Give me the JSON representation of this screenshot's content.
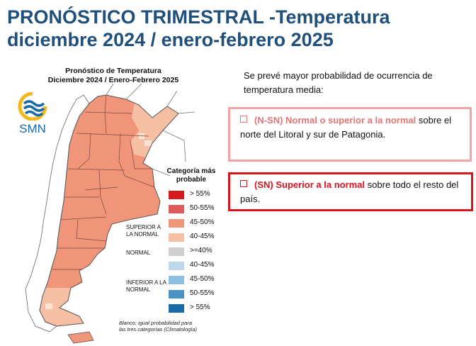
{
  "slide": {
    "title_line1": "PRONÓSTICO TRIMESTRAL -Temperatura",
    "title_line2": "diciembre 2024 / enero-febrero 2025"
  },
  "map": {
    "title_line1": "Pronóstico de Temperatura",
    "title_line2": "Diciembre 2024 / Enero-Febrero 2025",
    "logo_text": "SMN",
    "logo_icon": "smn-logo-icon",
    "colors": {
      "south_majority": "#f0947a",
      "north_litoral": "#f6c0a5",
      "land_white": "#ffffff",
      "coast": "#555555"
    }
  },
  "legend": {
    "header_line1": "Categoría más",
    "header_line2": "probable",
    "groups": {
      "superior": "SUPERIOR A LA NORMAL",
      "normal": "NORMAL",
      "inferior": "INFERIOR A LA NORMAL"
    },
    "items": [
      {
        "label": "> 55%",
        "color": "#d7191c"
      },
      {
        "label": "50-55%",
        "color": "#e05b5b"
      },
      {
        "label": "45-50%",
        "color": "#f0947a"
      },
      {
        "label": "40-45%",
        "color": "#f6c0a5"
      },
      {
        "label": ">=40%",
        "color": "#cfcfcf"
      },
      {
        "label": "40-45%",
        "color": "#bcd8ea"
      },
      {
        "label": "45-50%",
        "color": "#8dc0e0"
      },
      {
        "label": "50-55%",
        "color": "#4a93c7"
      },
      {
        "label": "> 55%",
        "color": "#1a6aa8"
      }
    ],
    "footnote_line1": "Blanco: igual probabilidad para",
    "footnote_line2": "las tres categorías (Climatología)"
  },
  "text": {
    "intro": "Se prevé mayor probabilidad de ocurrencia de temperatura media:",
    "box1_highlight": "(N-SN) Normal o superior a la normal",
    "box1_rest": " sobre el norte del Litoral y sur de Patagonia.",
    "box2_highlight": "(SN) Superior a la normal",
    "box2_rest": " sobre todo el resto del país."
  }
}
